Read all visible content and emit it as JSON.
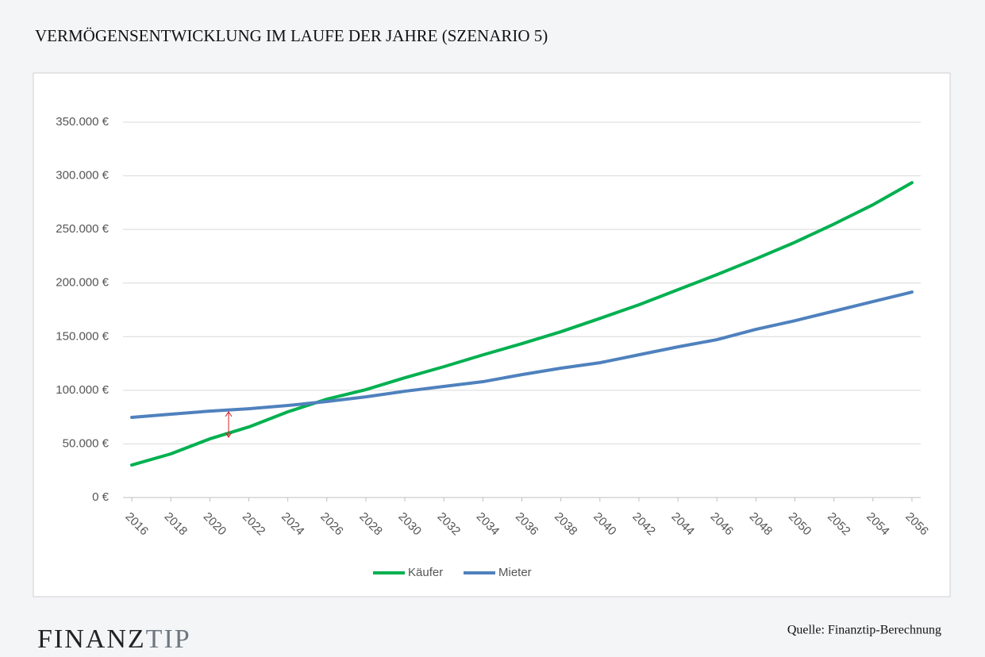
{
  "chart_data": {
    "type": "line",
    "title": "VERMÖGENSENTWICKLUNG IM LAUFE DER JAHRE (SZENARIO 5)",
    "x": [
      2016,
      2018,
      2020,
      2022,
      2024,
      2026,
      2028,
      2030,
      2032,
      2034,
      2036,
      2038,
      2040,
      2042,
      2044,
      2046,
      2048,
      2050,
      2052,
      2054,
      2056
    ],
    "xlim": [
      2015.55,
      2056.45
    ],
    "xticks": [
      2016,
      2018,
      2020,
      2022,
      2024,
      2026,
      2028,
      2030,
      2032,
      2034,
      2036,
      2038,
      2040,
      2042,
      2044,
      2046,
      2048,
      2050,
      2052,
      2054,
      2056
    ],
    "ylim": [
      0,
      350000
    ],
    "yticks": [
      {
        "value": 0,
        "label": "0 €"
      },
      {
        "value": 50000,
        "label": "50.000 €"
      },
      {
        "value": 100000,
        "label": "100.000 €"
      },
      {
        "value": 150000,
        "label": "150.000 €"
      },
      {
        "value": 200000,
        "label": "200.000 €"
      },
      {
        "value": 250000,
        "label": "250.000 €"
      },
      {
        "value": 300000,
        "label": "300.000 €"
      },
      {
        "value": 350000,
        "label": "350.000 €"
      }
    ],
    "grid": true,
    "legend": "bottom",
    "series": [
      {
        "name": "Käufer",
        "color": "#00b050",
        "values": [
          30300,
          40700,
          54700,
          65800,
          79900,
          91700,
          100600,
          111700,
          122000,
          133000,
          143500,
          154600,
          167000,
          179700,
          193800,
          207800,
          222600,
          238000,
          255000,
          273000,
          293600
        ]
      },
      {
        "name": "Mieter",
        "color": "#4f81bd",
        "values": [
          74700,
          77700,
          80600,
          82800,
          85800,
          89500,
          93900,
          99100,
          103600,
          108000,
          114600,
          120600,
          125700,
          133100,
          140500,
          147200,
          156800,
          164900,
          173800,
          182700,
          191600
        ]
      }
    ],
    "source": "Quelle:  Finanztip-Berechnung",
    "brand": [
      "FINANZ",
      "TIP"
    ]
  }
}
